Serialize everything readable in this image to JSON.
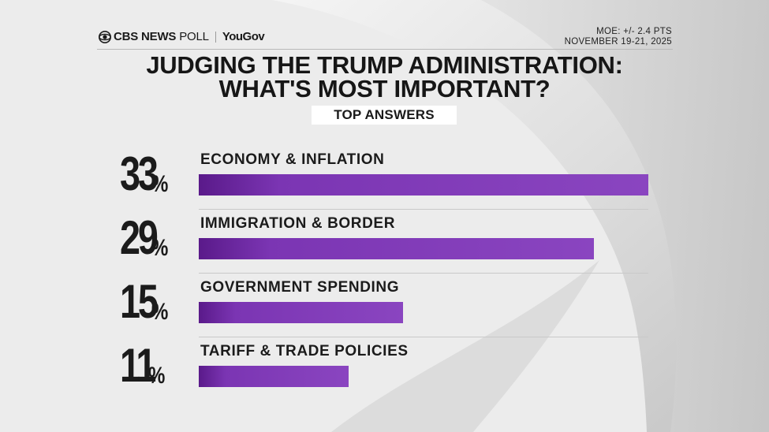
{
  "header": {
    "brand_cbs": "CBS NEWS",
    "brand_poll": "POLL",
    "brand_partner": "YouGov",
    "moe": "MOE: +/- 2.4 PTS",
    "dates": "NOVEMBER 19-21, 2025"
  },
  "title_line1": "JUDGING THE TRUMP ADMINISTRATION:",
  "title_line2": "WHAT'S MOST IMPORTANT?",
  "subtitle": "TOP ANSWERS",
  "colors": {
    "bar_start": "#5a1a8a",
    "bar_end": "#8a45c0",
    "text": "#1b1b1b",
    "background": "#ececec"
  },
  "chart_data": {
    "type": "bar",
    "orientation": "horizontal",
    "title": "JUDGING THE TRUMP ADMINISTRATION: WHAT'S MOST IMPORTANT?",
    "subtitle": "TOP ANSWERS",
    "unit": "%",
    "categories": [
      "ECONOMY & INFLATION",
      "IMMIGRATION & BORDER",
      "GOVERNMENT SPENDING",
      "TARIFF & TRADE POLICIES"
    ],
    "values": [
      33,
      29,
      15,
      11
    ],
    "value_labels": [
      "33",
      "29",
      "15",
      "11"
    ],
    "xlim": [
      0,
      33
    ],
    "grid": false,
    "legend": "none"
  }
}
